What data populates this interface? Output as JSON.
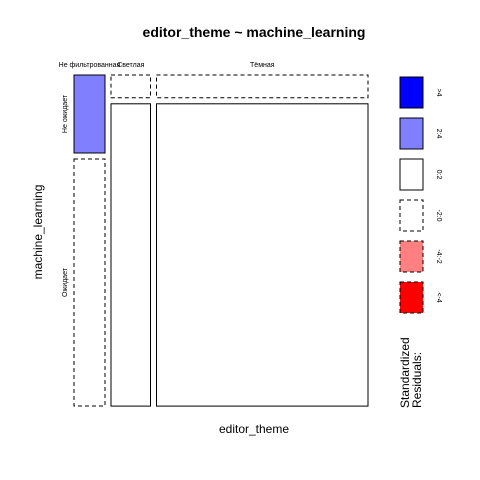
{
  "chart_data": {
    "type": "mosaic",
    "title": "editor_theme ~ machine_learning",
    "xlabel": "editor_theme",
    "ylabel": "machine_learning",
    "x_categories": [
      "Не фильтрованная",
      "Светлая",
      "Тёмная"
    ],
    "y_categories": [
      "Не ожидает",
      "Ожидает"
    ],
    "x_proportions": [
      0.11,
      0.14,
      0.75
    ],
    "cells": [
      {
        "x": "Не фильтрованная",
        "y": "Не ожидает",
        "proportion": 0.24,
        "residual_class": "2:4"
      },
      {
        "x": "Не фильтрованная",
        "y": "Ожидает",
        "proportion": 0.76,
        "residual_class": "-2:0"
      },
      {
        "x": "Светлая",
        "y": "Не ожидает",
        "proportion": 0.07,
        "residual_class": "-2:0"
      },
      {
        "x": "Светлая",
        "y": "Ожидает",
        "proportion": 0.93,
        "residual_class": "0:2"
      },
      {
        "x": "Тёмная",
        "y": "Не ожидает",
        "proportion": 0.07,
        "residual_class": "-2:0"
      },
      {
        "x": "Тёмная",
        "y": "Ожидает",
        "proportion": 0.93,
        "residual_class": "0:2"
      }
    ],
    "legend": {
      "title_lines": [
        "Standardized",
        "Residuals:"
      ],
      "placement": "right",
      "entries": [
        {
          "label": ">4",
          "fill": "#0000ff",
          "dashed": false
        },
        {
          "label": "2:4",
          "fill": "#8080ff",
          "dashed": false
        },
        {
          "label": "0:2",
          "fill": "#ffffff",
          "dashed": false
        },
        {
          "label": "-2:0",
          "fill": "#ffffff",
          "dashed": true
        },
        {
          "label": "-4:-2",
          "fill": "#ff8080",
          "dashed": true
        },
        {
          "label": "<-4",
          "fill": "#ff0000",
          "dashed": true
        }
      ]
    }
  }
}
